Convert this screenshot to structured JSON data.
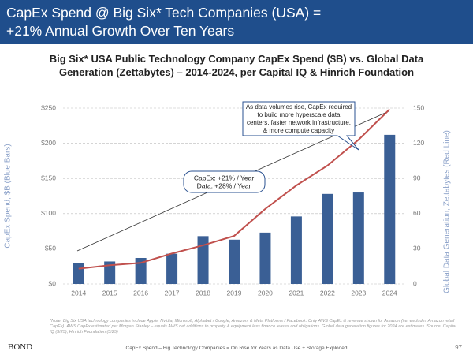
{
  "header": {
    "title_lines": [
      "CapEx Spend @ Big Six* Tech Companies (USA) =",
      "+21% Annual Growth Over Ten Years"
    ]
  },
  "chart_data": {
    "type": "bar",
    "title_lines": [
      "Big Six* USA Public Technology Company CapEx Spend ($B) vs. Global Data",
      "Generation (Zettabytes) – 2014-2024, per Capital IQ & Hinrich Foundation"
    ],
    "categories": [
      "2014",
      "2015",
      "2016",
      "2017",
      "2018",
      "2019",
      "2020",
      "2021",
      "2022",
      "2023",
      "2024"
    ],
    "series": [
      {
        "type": "bar",
        "color": "#3a5f95",
        "values": [
          30,
          32,
          37,
          43,
          68,
          63,
          73,
          96,
          128,
          130,
          212
        ]
      },
      {
        "type": "line",
        "axis": "y2",
        "color": "#c0504d",
        "values": [
          13,
          16,
          18,
          26,
          33,
          41,
          64,
          84,
          101,
          123,
          149
        ]
      }
    ],
    "ylim": [
      0,
      250
    ],
    "yticks": [
      {
        "value": 0,
        "label": "$0"
      },
      {
        "value": 50,
        "label": "$50"
      },
      {
        "value": 100,
        "label": "$100"
      },
      {
        "value": 150,
        "label": "$150"
      },
      {
        "value": 200,
        "label": "$200"
      },
      {
        "value": 250,
        "label": "$250"
      }
    ],
    "y2lim": [
      0,
      150
    ],
    "y2ticks": [
      0,
      30,
      60,
      90,
      120,
      150
    ],
    "ylabel": "CapEx Spend, $B (Blue Bars)",
    "y2label": "Global Data Generation, Zettabytes (Red Line)",
    "grid": true,
    "annotations": [
      {
        "lines": [
          "As data volumes rise, CapEx required",
          "to build more hyperscale data",
          "centers, faster network infrastructure,",
          "& more compute capacity"
        ]
      },
      {
        "lines": [
          "CapEx: +21% / Year",
          "Data: +28% / Year"
        ]
      }
    ]
  },
  "footnote": "*Note: Big Six USA technology companies include Apple, Nvidia, Microsoft, Alphabet / Google, Amazon, & Meta Platforms / Facebook. Only AWS CapEx & revenue shown for Amazon (i.e. excludes Amazon retail CapEx). AWS CapEx estimated per Morgan Stanley – equals AWS net additions to property & equipment less finance leases and obligations. Global data generation figures for 2024 are estimates. Source: Capital IQ (3/25), Hinrich Foundation (3/25)",
  "footer": {
    "logo": "BOND",
    "text": "CapEx Spend – Big Technology Companies = On Rise for Years as Data Use + Storage Exploded",
    "page": "97"
  }
}
